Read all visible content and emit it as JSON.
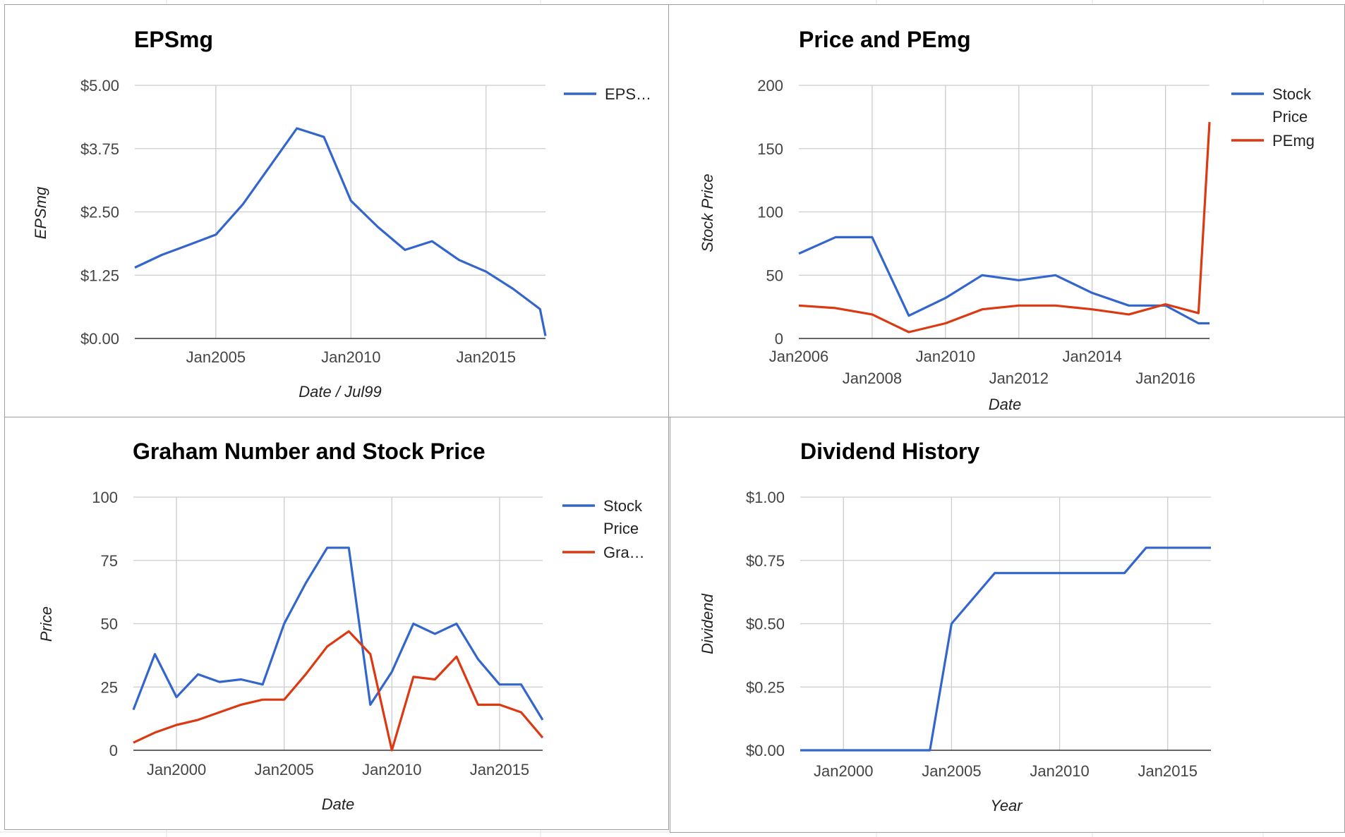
{
  "colors": {
    "blue": "#3366cc",
    "red": "#dc3912",
    "grid": "#cccccc",
    "baseline": "#333333"
  },
  "chart_data": [
    {
      "type": "line",
      "title": "EPSmg",
      "xlabel": "Date / Jul99",
      "ylabel": "EPSmg",
      "xlim": [
        2002.0,
        2017.2
      ],
      "ylim": [
        0,
        5
      ],
      "x_ticks": [
        {
          "v": 2005,
          "label": "Jan2005"
        },
        {
          "v": 2010,
          "label": "Jan2010"
        },
        {
          "v": 2015,
          "label": "Jan2015"
        }
      ],
      "y_ticks": [
        {
          "v": 5,
          "label": "$5.00"
        },
        {
          "v": 3.75,
          "label": "$3.75"
        },
        {
          "v": 2.5,
          "label": "$2.50"
        },
        {
          "v": 1.25,
          "label": "$1.25"
        },
        {
          "v": 0,
          "label": "$0.00"
        }
      ],
      "legend_position": "right",
      "series": [
        {
          "name": "EPS…",
          "color": "#3366cc",
          "x": [
            2002.0,
            2003.0,
            2004.0,
            2005.0,
            2006.0,
            2007.0,
            2008.0,
            2009.0,
            2010.0,
            2011.0,
            2012.0,
            2013.0,
            2014.0,
            2015.0,
            2016.0,
            2017.0,
            2017.2
          ],
          "y": [
            1.4,
            1.65,
            1.85,
            2.05,
            2.65,
            3.4,
            4.15,
            3.98,
            2.72,
            2.2,
            1.75,
            1.92,
            1.55,
            1.32,
            0.98,
            0.58,
            0.05
          ]
        }
      ]
    },
    {
      "type": "line",
      "title": "Price and PEmg",
      "xlabel": "Date",
      "ylabel": "Stock Price",
      "xlim": [
        2006.0,
        2017.2
      ],
      "ylim": [
        0,
        200
      ],
      "x_ticks": [
        {
          "v": 2006,
          "label": "Jan2006",
          "row": 0
        },
        {
          "v": 2008,
          "label": "Jan2008",
          "row": 1
        },
        {
          "v": 2010,
          "label": "Jan2010",
          "row": 0
        },
        {
          "v": 2012,
          "label": "Jan2012",
          "row": 1
        },
        {
          "v": 2014,
          "label": "Jan2014",
          "row": 0
        },
        {
          "v": 2016,
          "label": "Jan2016",
          "row": 1
        }
      ],
      "y_ticks": [
        {
          "v": 200,
          "label": "200"
        },
        {
          "v": 150,
          "label": "150"
        },
        {
          "v": 100,
          "label": "100"
        },
        {
          "v": 50,
          "label": "50"
        },
        {
          "v": 0,
          "label": "0"
        }
      ],
      "legend_position": "right",
      "series": [
        {
          "name": "Stock Price",
          "name_lines": [
            "Stock",
            "Price"
          ],
          "color": "#3366cc",
          "x": [
            2006.0,
            2007.0,
            2008.0,
            2009.0,
            2010.0,
            2011.0,
            2012.0,
            2013.0,
            2014.0,
            2015.0,
            2016.0,
            2016.9,
            2017.2
          ],
          "y": [
            67,
            80,
            80,
            18,
            32,
            50,
            46,
            50,
            36,
            26,
            26,
            12,
            12
          ]
        },
        {
          "name": "PEmg",
          "name_lines": [
            "PEmg"
          ],
          "color": "#dc3912",
          "x": [
            2006.0,
            2007.0,
            2008.0,
            2009.0,
            2010.0,
            2011.0,
            2012.0,
            2013.0,
            2014.0,
            2015.0,
            2016.0,
            2016.9,
            2017.2
          ],
          "y": [
            26,
            24,
            19,
            5,
            12,
            23,
            26,
            26,
            23,
            19,
            27,
            20,
            171
          ]
        }
      ]
    },
    {
      "type": "line",
      "title": "Graham Number and Stock Price",
      "xlabel": "Date",
      "ylabel": "Price",
      "xlim": [
        1998.0,
        2017.0
      ],
      "ylim": [
        0,
        100
      ],
      "x_ticks": [
        {
          "v": 2000,
          "label": "Jan2000"
        },
        {
          "v": 2005,
          "label": "Jan2005"
        },
        {
          "v": 2010,
          "label": "Jan2010"
        },
        {
          "v": 2015,
          "label": "Jan2015"
        }
      ],
      "y_ticks": [
        {
          "v": 100,
          "label": "100"
        },
        {
          "v": 75,
          "label": "75"
        },
        {
          "v": 50,
          "label": "50"
        },
        {
          "v": 25,
          "label": "25"
        },
        {
          "v": 0,
          "label": "0"
        }
      ],
      "legend_position": "right",
      "series": [
        {
          "name": "Stock Price",
          "name_lines": [
            "Stock",
            "Price"
          ],
          "color": "#3366cc",
          "x": [
            1998.0,
            1999.0,
            2000.0,
            2001.0,
            2002.0,
            2003.0,
            2004.0,
            2005.0,
            2006.0,
            2007.0,
            2008.0,
            2009.0,
            2010.0,
            2011.0,
            2012.0,
            2013.0,
            2014.0,
            2015.0,
            2016.0,
            2017.0
          ],
          "y": [
            16,
            38,
            21,
            30,
            27,
            28,
            26,
            50,
            66,
            80,
            80,
            18,
            31,
            50,
            46,
            50,
            36,
            26,
            26,
            12
          ]
        },
        {
          "name": "Gra…",
          "name_lines": [
            "Gra…"
          ],
          "color": "#dc3912",
          "x": [
            1998.0,
            1999.0,
            2000.0,
            2001.0,
            2002.0,
            2003.0,
            2004.0,
            2005.0,
            2006.0,
            2007.0,
            2008.0,
            2009.0,
            2010.0,
            2011.0,
            2012.0,
            2013.0,
            2014.0,
            2015.0,
            2016.0,
            2017.0
          ],
          "y": [
            3,
            7,
            10,
            12,
            15,
            18,
            20,
            20,
            30,
            41,
            47,
            38,
            0,
            29,
            28,
            37,
            18,
            18,
            15,
            5
          ]
        }
      ]
    },
    {
      "type": "line",
      "title": "Dividend History",
      "xlabel": "Year",
      "ylabel": "Dividend",
      "xlim": [
        1998.0,
        2017.0
      ],
      "ylim": [
        0,
        1
      ],
      "x_ticks": [
        {
          "v": 2000,
          "label": "Jan2000"
        },
        {
          "v": 2005,
          "label": "Jan2005"
        },
        {
          "v": 2010,
          "label": "Jan2010"
        },
        {
          "v": 2015,
          "label": "Jan2015"
        }
      ],
      "y_ticks": [
        {
          "v": 1,
          "label": "$1.00"
        },
        {
          "v": 0.75,
          "label": "$0.75"
        },
        {
          "v": 0.5,
          "label": "$0.50"
        },
        {
          "v": 0.25,
          "label": "$0.25"
        },
        {
          "v": 0,
          "label": "$0.00"
        }
      ],
      "legend_position": "none",
      "series": [
        {
          "name": "",
          "color": "#3366cc",
          "x": [
            1998.0,
            2004.0,
            2005.0,
            2007.0,
            2013.0,
            2014.0,
            2017.0
          ],
          "y": [
            0,
            0,
            0.5,
            0.7,
            0.7,
            0.8,
            0.8
          ]
        }
      ]
    }
  ]
}
